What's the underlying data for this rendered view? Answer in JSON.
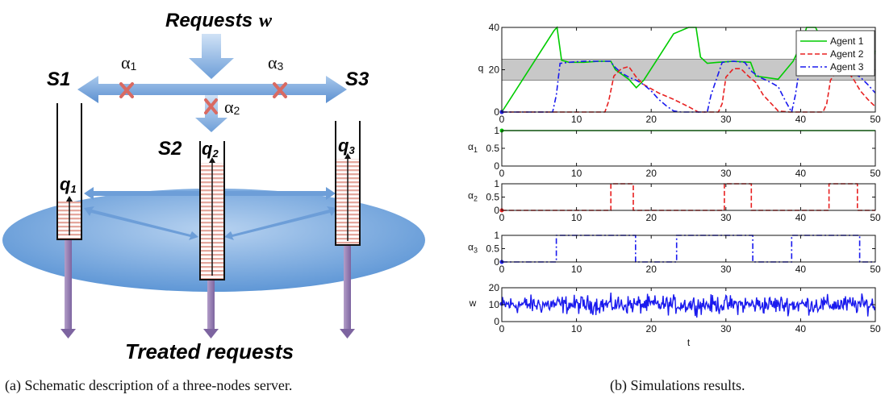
{
  "diagram": {
    "title_requests": "Requests",
    "title_requests_var": "w",
    "servers": [
      "S1",
      "S2",
      "S3"
    ],
    "queues": [
      "q",
      "q",
      "q"
    ],
    "queue_subs": [
      "1",
      "2",
      "3"
    ],
    "alphas": [
      "α",
      "α",
      "α"
    ],
    "alpha_subs": [
      "1",
      "2",
      "3"
    ],
    "treated": "Treated requests",
    "caption": "(a) Schematic description of a three-nodes server."
  },
  "chart_caption": "(b) Simulations results.",
  "chart_data": [
    {
      "type": "line",
      "ylabel": "q",
      "xlim": [
        0,
        50
      ],
      "ylim": [
        0,
        40
      ],
      "xticks": [
        "0",
        "10",
        "20",
        "30",
        "40",
        "50"
      ],
      "yticks": [
        "0",
        "20",
        "40"
      ],
      "band": [
        15,
        25
      ],
      "legend": [
        "Agent 1",
        "Agent 2",
        "Agent 3"
      ],
      "legend_position": "top-right",
      "series": [
        {
          "name": "Agent 1",
          "color": "#00cc00",
          "style": "solid",
          "x": [
            0,
            1,
            3,
            5,
            7,
            7.4,
            8,
            9,
            11,
            13,
            14.6,
            15.2,
            17,
            18,
            19,
            21,
            23,
            25,
            26,
            26.6,
            27.5,
            29,
            31,
            33.3,
            34,
            37,
            39,
            40.2,
            40.8,
            42,
            44,
            46,
            47,
            48.2,
            49,
            50
          ],
          "y": [
            0,
            5.5,
            16.5,
            27.5,
            38.5,
            40,
            24.5,
            23.5,
            23.5,
            24,
            24,
            20,
            15.5,
            11.5,
            15,
            26,
            37,
            40,
            40,
            26,
            23,
            23.5,
            24,
            23.5,
            17,
            15.5,
            24,
            33,
            40,
            40,
            26,
            24,
            23.5,
            24,
            19,
            29
          ]
        },
        {
          "name": "Agent 2",
          "color": "#e82020",
          "style": "dashed",
          "x": [
            0,
            13.8,
            14.3,
            15,
            16,
            17,
            18,
            19,
            21,
            23,
            25,
            26.3,
            28,
            29,
            29.5,
            30,
            31,
            32,
            33,
            34,
            35,
            37,
            38.5,
            40,
            42,
            43,
            43.5,
            44,
            45,
            46,
            47,
            48,
            49,
            50
          ],
          "y": [
            0,
            0,
            5,
            17,
            20.5,
            21.5,
            16.5,
            13,
            9,
            6,
            2.5,
            0,
            0,
            0,
            4,
            16.5,
            20.5,
            20.5,
            17,
            14,
            8,
            0.5,
            0,
            0,
            0,
            0,
            4,
            15,
            20.5,
            20,
            16,
            10,
            6,
            2.5
          ]
        },
        {
          "name": "Agent 3",
          "color": "#1a1aee",
          "style": "dashdot",
          "x": [
            0,
            6.8,
            7.3,
            7.8,
            9,
            11,
            13,
            14.5,
            15.2,
            16,
            17,
            18,
            19,
            20,
            21,
            22,
            23,
            24,
            25,
            26,
            27,
            27.5,
            28,
            29.5,
            31,
            32.5,
            33.5,
            34.5,
            36,
            37,
            38,
            38.8,
            39.3,
            40,
            42,
            44,
            46,
            47,
            48,
            49,
            50
          ],
          "y": [
            0,
            0,
            8,
            23,
            23.5,
            24,
            24,
            24,
            21,
            18.5,
            16.5,
            15,
            13,
            10,
            6,
            3,
            0.5,
            0,
            0,
            0,
            0,
            0,
            8,
            23.5,
            24,
            23.5,
            19,
            16.5,
            14,
            12,
            5,
            0,
            8,
            24,
            24,
            24,
            21,
            18.5,
            16.5,
            13,
            9
          ]
        }
      ]
    },
    {
      "type": "line",
      "ylabel": "α",
      "ylabel_sub": "1",
      "xlim": [
        0,
        50
      ],
      "ylim": [
        0,
        1
      ],
      "xticks": [
        "0",
        "10",
        "20",
        "30",
        "40",
        "50"
      ],
      "yticks": [
        "0",
        "0.5",
        "1"
      ],
      "series": [
        {
          "name": "",
          "color": "#00cc00",
          "style": "solid",
          "x": [
            0,
            50
          ],
          "y": [
            1,
            1
          ]
        }
      ]
    },
    {
      "type": "line",
      "ylabel": "α",
      "ylabel_sub": "2",
      "xlim": [
        0,
        50
      ],
      "ylim": [
        0,
        1
      ],
      "xticks": [
        "0",
        "10",
        "20",
        "30",
        "40",
        "50"
      ],
      "yticks": [
        "0",
        "0.5",
        "1"
      ],
      "series": [
        {
          "name": "",
          "color": "#e82020",
          "style": "dashed",
          "x": [
            0,
            14.6,
            14.6,
            17.6,
            17.6,
            29.8,
            29.8,
            33.4,
            33.4,
            43.8,
            43.8,
            47.6,
            47.6,
            50
          ],
          "y": [
            0,
            0,
            1,
            1,
            0,
            0,
            1,
            1,
            0,
            0,
            1,
            1,
            0,
            0
          ]
        }
      ]
    },
    {
      "type": "line",
      "ylabel": "α",
      "ylabel_sub": "3",
      "xlim": [
        0,
        50
      ],
      "ylim": [
        0,
        1
      ],
      "xticks": [
        "0",
        "10",
        "20",
        "30",
        "40",
        "50"
      ],
      "yticks": [
        "0",
        "0.5",
        "1"
      ],
      "series": [
        {
          "name": "",
          "color": "#1a1aee",
          "style": "dashdot",
          "x": [
            0,
            7.3,
            7.3,
            17.9,
            17.9,
            23.4,
            23.4,
            33.6,
            33.6,
            38.8,
            38.8,
            47.9,
            47.9,
            50
          ],
          "y": [
            0,
            0,
            1,
            1,
            0,
            0,
            1,
            1,
            0,
            0,
            1,
            1,
            0,
            0
          ]
        }
      ]
    },
    {
      "type": "line",
      "ylabel": "w",
      "xlabel": "t",
      "xlim": [
        0,
        50
      ],
      "ylim": [
        0,
        20
      ],
      "xticks": [
        "0",
        "10",
        "20",
        "30",
        "40",
        "50"
      ],
      "yticks": [
        "0",
        "10",
        "20"
      ],
      "noise": {
        "mean": 10,
        "amplitude": 5,
        "samples": 500
      },
      "series": [
        {
          "name": "",
          "color": "#1a1aee",
          "style": "solid"
        }
      ]
    }
  ]
}
